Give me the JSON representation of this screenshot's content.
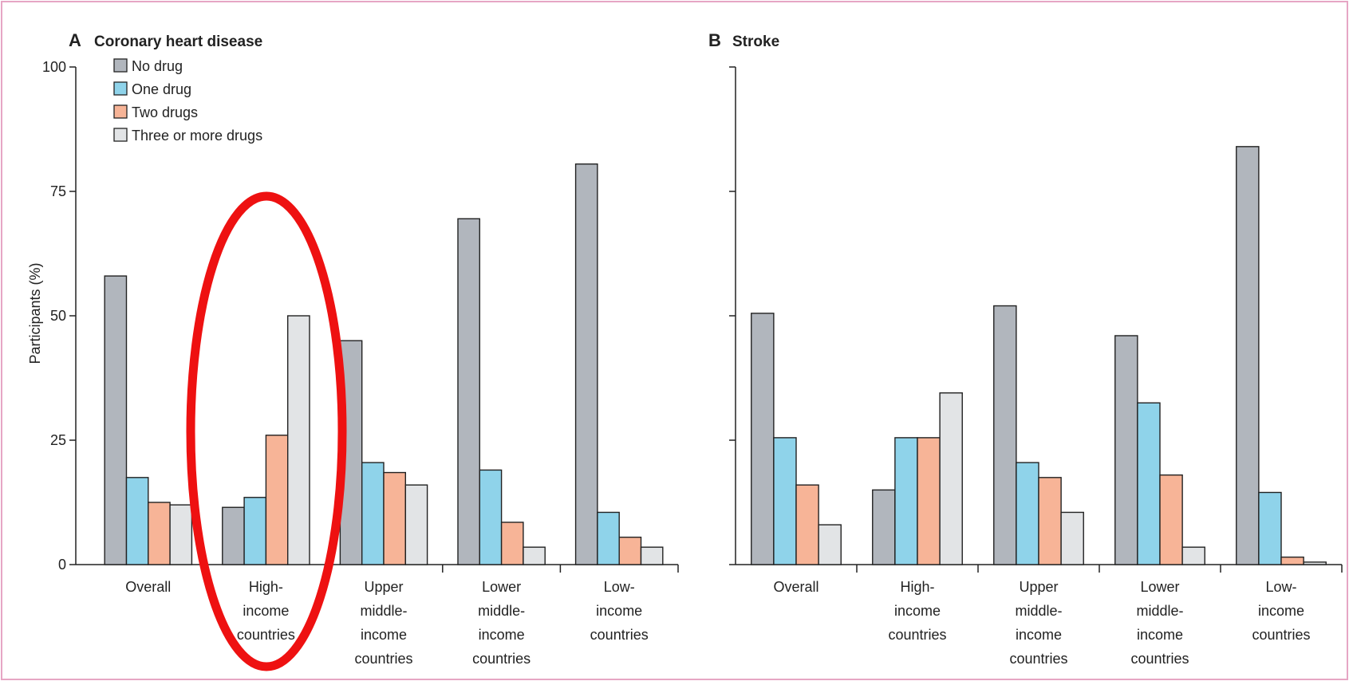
{
  "chart_data": [
    {
      "type": "bar",
      "panel": "A",
      "title": "Coronary heart disease",
      "ylabel": "Participants (%)",
      "ylim": [
        0,
        100
      ],
      "yticks": [
        0,
        25,
        50,
        75,
        100
      ],
      "categories": [
        [
          "Overall"
        ],
        [
          "High-",
          "income",
          "countries"
        ],
        [
          "Upper",
          "middle-",
          "income",
          "countries"
        ],
        [
          "Lower",
          "middle-",
          "income",
          "countries"
        ],
        [
          "Low-",
          "income",
          "countries"
        ]
      ],
      "series": [
        {
          "name": "No drug",
          "values": [
            58,
            11.5,
            45,
            69.5,
            80.5
          ]
        },
        {
          "name": "One drug",
          "values": [
            17.5,
            13.5,
            20.5,
            19,
            10.5
          ]
        },
        {
          "name": "Two drugs",
          "values": [
            12.5,
            26,
            18.5,
            8.5,
            5.5
          ]
        },
        {
          "name": "Three or more drugs",
          "values": [
            12,
            50,
            16,
            3.5,
            3.5
          ]
        }
      ],
      "legend_position": "top-left",
      "grid": false
    },
    {
      "type": "bar",
      "panel": "B",
      "title": "Stroke",
      "ylim": [
        0,
        100
      ],
      "yticks": [
        0,
        25,
        50,
        75,
        100
      ],
      "categories": [
        [
          "Overall"
        ],
        [
          "High-",
          "income",
          "countries"
        ],
        [
          "Upper",
          "middle-",
          "income",
          "countries"
        ],
        [
          "Lower",
          "middle-",
          "income",
          "countries"
        ],
        [
          "Low-",
          "income",
          "countries"
        ]
      ],
      "series": [
        {
          "name": "No drug",
          "values": [
            50.5,
            15,
            52,
            46,
            84
          ]
        },
        {
          "name": "One drug",
          "values": [
            25.5,
            25.5,
            20.5,
            32.5,
            14.5
          ]
        },
        {
          "name": "Two drugs",
          "values": [
            16,
            25.5,
            17.5,
            18,
            1.5
          ]
        },
        {
          "name": "Three or more drugs",
          "values": [
            8,
            34.5,
            10.5,
            3.5,
            0.5
          ]
        }
      ],
      "grid": false
    }
  ],
  "colors": {
    "no_drug": "#b1b6bd",
    "one_drug": "#8fd3ea",
    "two_drugs": "#f7b497",
    "three_plus": "#e2e4e6",
    "highlight": "#ee1111",
    "frame": "#e6a6c4"
  },
  "annotation": {
    "type": "ellipse-highlight",
    "target": "High-income countries (panel A)"
  }
}
